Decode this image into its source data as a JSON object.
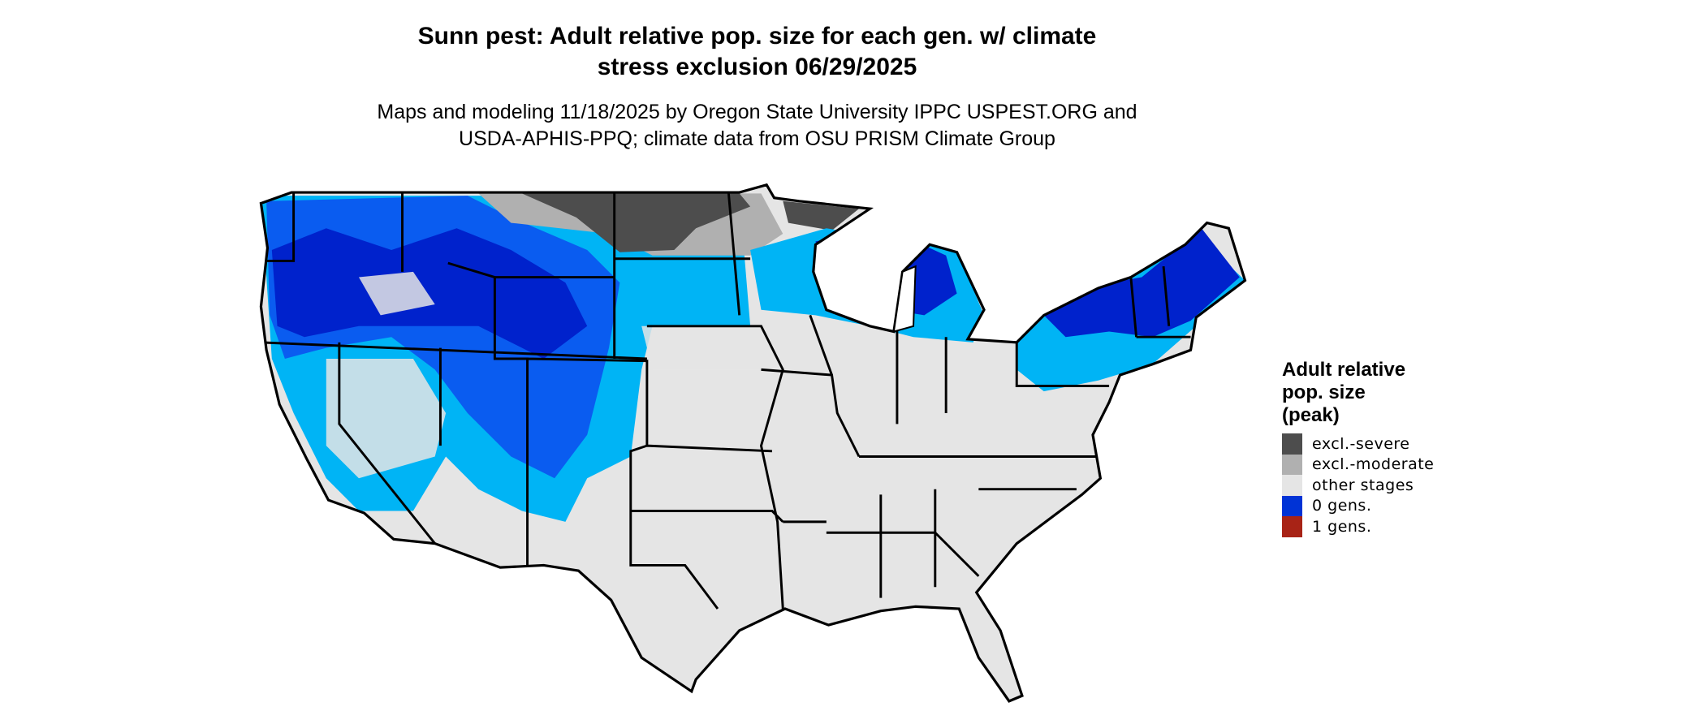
{
  "chart_data": {
    "type": "heatmap",
    "subtype": "choropleth-map",
    "title": "Sunn pest: Adult relative pop. size for each gen. w/ climate stress exclusion 06/29/2025",
    "title_lines": [
      "Sunn pest: Adult relative pop. size for each gen. w/ climate",
      "stress exclusion 06/29/2025"
    ],
    "subtitle_lines": [
      "Maps and modeling 11/18/2025 by Oregon State University IPPC USPEST.ORG and",
      "USDA-APHIS-PPQ; climate data from OSU PRISM Climate Group"
    ],
    "region": "Contiguous United States",
    "legend": {
      "title_lines": [
        "Adult relative",
        "pop. size",
        "(peak)"
      ],
      "placement": "right",
      "entries": [
        {
          "label": "excl.-severe",
          "color": "#4d4d4d"
        },
        {
          "label": "excl.-moderate",
          "color": "#b0b0b0"
        },
        {
          "label": "other stages",
          "color": "#e5e5e5"
        },
        {
          "label": "0 gens.",
          "color": "#0033d6"
        },
        {
          "label": "1 gens.",
          "color": "#a82316"
        }
      ]
    },
    "observed_pattern": {
      "excl.-severe": "North Dakota, northern Minnesota",
      "excl.-moderate": "Northern Montana, parts of North Dakota/Minnesota",
      "0 gens.": "Northwest, Rocky Mountains, upper Great Lakes, Northeast",
      "other stages": "Most of central and southern US"
    }
  },
  "colors": {
    "blue_dark": "#0022cc",
    "blue_mid": "#0a5cf0",
    "blue_light": "#00b4f5",
    "land": "#e5e5e5",
    "border": "#000000"
  }
}
